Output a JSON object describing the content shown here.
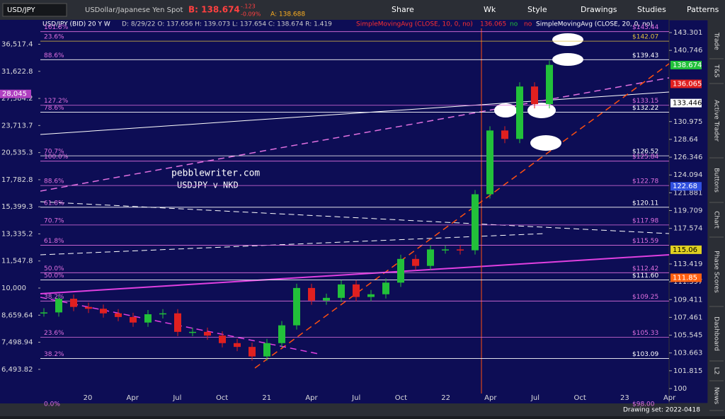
{
  "toolbar": {
    "symbol": "USD/JPY",
    "description": "USDollar/Japanese Yen Spot",
    "bid": "B: 138.674",
    "change": "-.123",
    "change_pct": "-0.09%",
    "ask": "A: 138.688",
    "buttons": [
      "Share",
      "Wk",
      "Style",
      "Drawings",
      "Studies",
      "Patterns"
    ]
  },
  "header": {
    "instrument": "USD/JPY (BID) 20 Y W",
    "quote": "D: 8/29/22   O: 137.656   H: 139.073   L: 137.654   C: 138.674   R: 1.419",
    "study1": "SimpleMovingAvg (CLOSE, 10, 0, no)",
    "study1_value": "136.065",
    "flag1": "no",
    "flag2": "no",
    "study2": "SimpleMovingAvg (CLOSE, 20, 0, no)"
  },
  "chart": {
    "watermark": "pebblewriter.com",
    "subtitle": "USDJPY v NKD",
    "closes": [
      108.0,
      109.5,
      108.6,
      108.4,
      107.9,
      107.5,
      106.9,
      107.8,
      107.9,
      105.9,
      105.9,
      105.5,
      104.7,
      104.3,
      103.3,
      104.7,
      106.6,
      110.7,
      109.3,
      109.6,
      111.1,
      109.7,
      110.0,
      111.3,
      114.0,
      113.2,
      115.1,
      115.1,
      115.0,
      121.7,
      129.8,
      128.7,
      135.7,
      133.3,
      138.7
    ],
    "right_ticks": [
      143.301,
      140.746,
      130.975,
      128.64,
      126.346,
      124.094,
      121.881,
      119.709,
      117.574,
      113.419,
      111.397,
      109.411,
      107.461,
      105.545,
      103.663,
      101.815,
      100
    ],
    "left_ticks": [
      {
        "value": 36517.4,
        "label": "36,517.4"
      },
      {
        "value": 31622.8,
        "label": "31,622.8"
      },
      {
        "value": 27384.2,
        "label": "27,384.2"
      },
      {
        "value": 23713.7,
        "label": "23,713.7"
      },
      {
        "value": 20535.3,
        "label": "20,535.3"
      },
      {
        "value": 17782.8,
        "label": "17,782.8"
      },
      {
        "value": 15399.3,
        "label": "15,399.3"
      },
      {
        "value": 13335.2,
        "label": "13,335.2"
      },
      {
        "value": 11547.8,
        "label": "11,547.8"
      },
      {
        "value": 10000,
        "label": "10,000"
      },
      {
        "value": 8659.64,
        "label": "8,659.64"
      },
      {
        "value": 7498.94,
        "label": "7,498.94"
      },
      {
        "value": 6493.82,
        "label": "6,493.82"
      }
    ],
    "left_tag": {
      "value": 28045,
      "label": "28,045"
    },
    "x_labels": [
      "20",
      "Apr",
      "Jul",
      "Oct",
      "21",
      "Apr",
      "Jul",
      "Oct",
      "22",
      "Apr",
      "Jul",
      "Oct",
      "23",
      "Apr"
    ],
    "fib_levels": [
      {
        "pct": "161.8%",
        "price": "$143.44",
        "value": 143.44,
        "color": "#e070e0"
      },
      {
        "pct": "23.6%",
        "price": "$142.07",
        "value": 142.07,
        "color": "#e0c040"
      },
      {
        "pct": "88.6%",
        "price": "$139.43",
        "value": 139.43,
        "color": "#ffffff"
      },
      {
        "pct": "127.2%",
        "price": "$133.15",
        "value": 133.15,
        "color": "#e070e0"
      },
      {
        "pct": "78.6%",
        "price": "$132.22",
        "value": 132.22,
        "color": "#ffffff"
      },
      {
        "pct": "70.7%",
        "price": "$126.52",
        "value": 126.52,
        "color": "#ffffff"
      },
      {
        "pct": "100.0%",
        "price": "$125.84",
        "value": 125.84,
        "color": "#e070e0"
      },
      {
        "pct": "88.6%",
        "price": "$122.78",
        "value": 122.78,
        "color": "#e070e0"
      },
      {
        "pct": "61.8%",
        "price": "$120.11",
        "value": 120.11,
        "color": "#ffffff"
      },
      {
        "pct": "70.7%",
        "price": "$117.98",
        "value": 117.98,
        "color": "#e070e0"
      },
      {
        "pct": "61.8%",
        "price": "$115.59",
        "value": 115.59,
        "color": "#e070e0"
      },
      {
        "pct": "50.0%",
        "price": "$112.42",
        "value": 112.42,
        "color": "#e070e0"
      },
      {
        "pct": "50.0%",
        "price": "$111.60",
        "value": 111.6,
        "color": "#ffffff"
      },
      {
        "pct": "38.2%",
        "price": "$109.25",
        "value": 109.25,
        "color": "#e070e0"
      },
      {
        "pct": "23.6%",
        "price": "$105.33",
        "value": 105.33,
        "color": "#e070e0"
      },
      {
        "pct": "38.2%",
        "price": "$103.09",
        "value": 103.09,
        "color": "#ffffff"
      },
      {
        "pct": "0.0%",
        "price": "$98.00",
        "value": 98.0,
        "color": "#e070e0"
      }
    ],
    "price_tags": [
      {
        "value": 138.674,
        "color": "#22c03a"
      },
      {
        "value": 136.065,
        "color": "#e02020"
      },
      {
        "value": 133.446,
        "color": "#ffffff"
      },
      {
        "value": 122.68,
        "color": "#3050e0"
      },
      {
        "value": 115.06,
        "color": "#e0d020"
      },
      {
        "value": 111.85,
        "color": "#ff6010"
      }
    ]
  },
  "footer": {
    "drawing_set": "Drawing set: 2022-0418"
  },
  "sidebar": [
    "Trade",
    "T&S",
    "Active Trader",
    "Buttons",
    "Chart",
    "Phase Scores",
    "Dashboard",
    "L2",
    "News"
  ]
}
